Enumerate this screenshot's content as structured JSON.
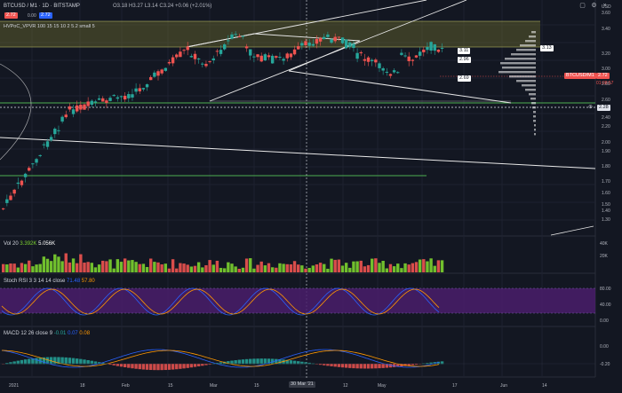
{
  "header": {
    "symbol": "BTCUSD / M1 · 1D · BITSTAMP",
    "ohlc": "O3.18 H3.27 L3.14 C3.24 +0.06 (+2.01%)",
    "price_red": "2.72",
    "spread": "0.00",
    "price_blue": "2.72",
    "indicator_label": "HVPoC_VPVR 100 15 15 10 2 5.2 small 5"
  },
  "price_axis": {
    "ticks": [
      "3.60",
      "3.40",
      "3.20",
      "3.00",
      "2.80",
      "2.60",
      "2.40",
      "2.20",
      "2.00",
      "1.90",
      "1.80",
      "1.70",
      "1.60",
      "1.50",
      "1.40",
      "1.30",
      "1.17"
    ],
    "current_label": "BTCUSD/M1",
    "current_value": "2.72",
    "current_sub": "01:08:57",
    "highlight_value": "2.28",
    "usd_label": "USD"
  },
  "annotations": {
    "tag_313": "3.13",
    "tag_311": "3.11",
    "tag_296": "2.96",
    "tag_269": "2.69"
  },
  "volume": {
    "label": "Vol 20",
    "val1": "3.392K",
    "val2": "5.056K",
    "axis": [
      "40K",
      "20K"
    ]
  },
  "stoch": {
    "label": "Stoch RSI 3 3 14 14 close",
    "val1": "71.48",
    "val2": "57.80",
    "axis": [
      "80.00",
      "40.00",
      "0.00"
    ]
  },
  "macd": {
    "label": "MACD 12 26 close 9",
    "val1": "-0.01",
    "val2": "0.07",
    "val3": "0.08",
    "axis": [
      "0.00",
      "-0.20"
    ]
  },
  "time_axis": {
    "ticks": [
      "2021",
      "18",
      "Feb",
      "15",
      "Mar",
      "15",
      "Apr",
      "12",
      "May",
      "17",
      "Jun",
      "14"
    ],
    "cursor_label": "30 Mar '21"
  },
  "colors": {
    "bg": "#131722",
    "up": "#26a69a",
    "down": "#ef5350",
    "vol_up": "#7cd32f",
    "vol_down": "#ef5350",
    "band": "#6b6b2e",
    "stoch_band": "#4a1d6b",
    "green_line": "#4caf50"
  }
}
